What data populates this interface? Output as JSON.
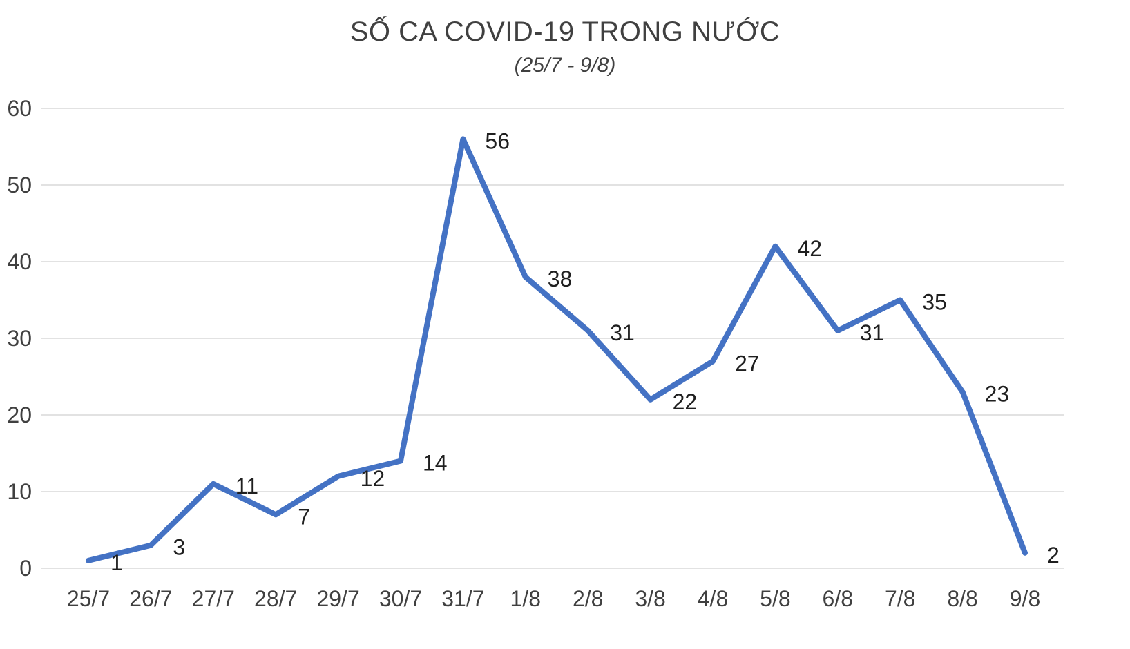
{
  "chart": {
    "title": "SỐ CA COVID-19 TRONG NƯỚC",
    "subtitle": "(25/7 - 9/8)"
  },
  "chart_data": {
    "type": "line",
    "title": "SỐ CA COVID-19 TRONG NƯỚC",
    "subtitle": "(25/7 - 9/8)",
    "categories": [
      "25/7",
      "26/7",
      "27/7",
      "28/7",
      "29/7",
      "30/7",
      "31/7",
      "1/8",
      "2/8",
      "3/8",
      "4/8",
      "5/8",
      "6/8",
      "7/8",
      "8/8",
      "9/8"
    ],
    "values": [
      1,
      3,
      11,
      7,
      12,
      14,
      56,
      38,
      31,
      22,
      27,
      42,
      31,
      35,
      23,
      2
    ],
    "xlabel": "",
    "ylabel": "",
    "ylim": [
      0,
      60
    ],
    "yticks": [
      0,
      10,
      20,
      30,
      40,
      50,
      60
    ],
    "grid": true,
    "legend": "none",
    "data_labels": true,
    "colors": {
      "line": "#4472C4",
      "gridline": "#D9D9D9",
      "axis_label": "#404040",
      "data_label": "#1f1f1f"
    }
  }
}
